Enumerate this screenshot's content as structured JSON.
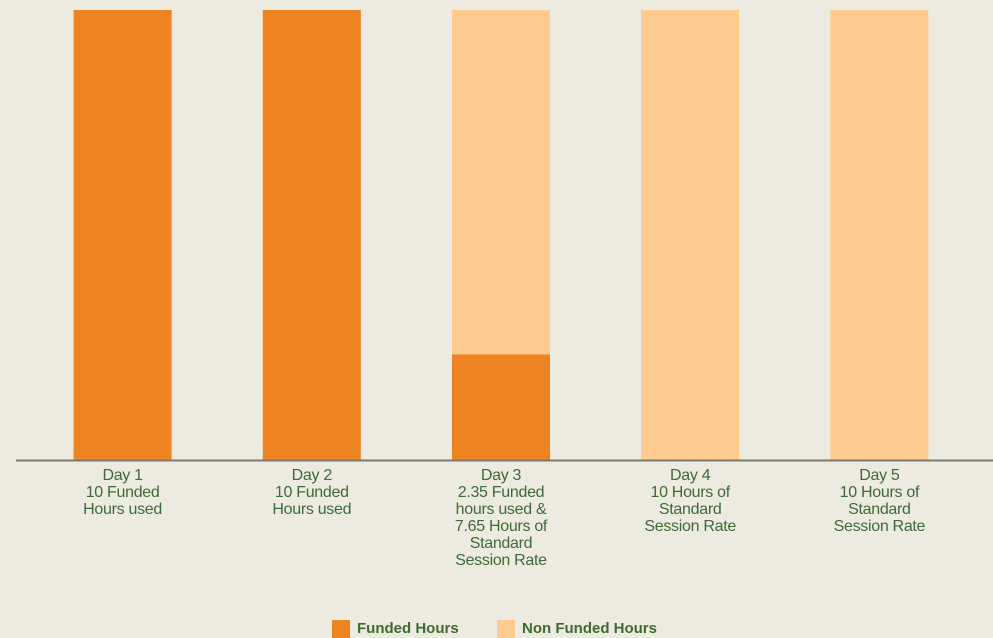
{
  "chart_data": {
    "type": "stacked_bar",
    "categories": [
      "Day 1\n10 Funded\nHours used",
      "Day 2\n10 Funded\nHours used",
      "Day 3\n2.35 Funded\nhours used &\n7.65 Hours of\nStandard\nSession Rate",
      "Day 4\n10 Hours of\nStandard\nSession Rate",
      "Day 5\n10 Hours of\nStandard\nSession Rate"
    ],
    "series": [
      {
        "name": "Funded Hours",
        "color": "#ee8322",
        "values": [
          10,
          10,
          2.35,
          0,
          0
        ]
      },
      {
        "name": "Non Funded Hours",
        "color": "#fdcb8d",
        "values": [
          0,
          0,
          7.65,
          10,
          10
        ]
      }
    ],
    "ylim": [
      0,
      10
    ],
    "legend": "bottom"
  }
}
